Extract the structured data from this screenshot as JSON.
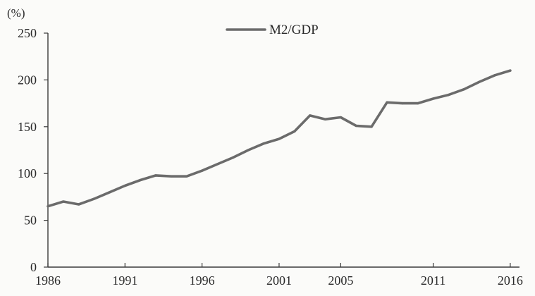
{
  "chart_data": {
    "type": "line",
    "unit_label": "(%)",
    "xlabel": "",
    "ylabel": "",
    "xlim": [
      1986,
      2016.6
    ],
    "ylim": [
      0,
      250
    ],
    "x_ticks": [
      1986,
      1991,
      1996,
      2001,
      2005,
      2011,
      2016
    ],
    "x_tick_labels": [
      "1986",
      "1991",
      "1996",
      "2001",
      "2005",
      "2011",
      "2016"
    ],
    "y_ticks": [
      0,
      50,
      100,
      150,
      200,
      250
    ],
    "y_tick_labels": [
      "0",
      "50",
      "100",
      "150",
      "200",
      "250"
    ],
    "grid": false,
    "legend_position": "top-center",
    "series": [
      {
        "name": "M2/GDP",
        "color": "#6b6b6b",
        "x": [
          1986,
          1987,
          1988,
          1989,
          1990,
          1991,
          1992,
          1993,
          1994,
          1995,
          1996,
          1997,
          1998,
          1999,
          2000,
          2001,
          2002,
          2003,
          2004,
          2005,
          2006,
          2007,
          2008,
          2009,
          2010,
          2011,
          2012,
          2013,
          2014,
          2015,
          2016
        ],
        "values": [
          65,
          70,
          67,
          73,
          80,
          87,
          93,
          98,
          97,
          97,
          103,
          110,
          117,
          125,
          132,
          137,
          145,
          162,
          158,
          160,
          151,
          150,
          176,
          175,
          175,
          180,
          184,
          190,
          198,
          205,
          210
        ]
      }
    ]
  }
}
